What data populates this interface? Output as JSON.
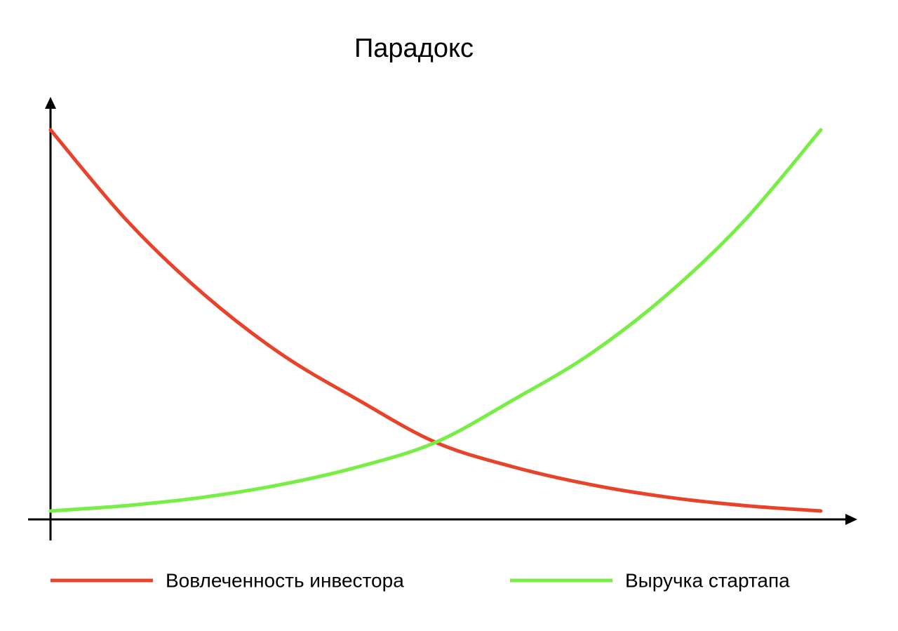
{
  "chart_data": {
    "type": "line",
    "title": "Парадокс",
    "x": [
      0,
      1,
      2,
      3,
      4,
      5,
      6,
      7,
      8,
      9,
      10
    ],
    "xlim": [
      0,
      10
    ],
    "ylim": [
      0,
      100
    ],
    "grid": false,
    "legend": "bottom",
    "series": [
      {
        "name": "Вовлеченность инвестора",
        "color": "#e8432a",
        "values": [
          92.5,
          70.8,
          53.3,
          39.2,
          28.3,
          18.3,
          12.5,
          8.3,
          5.3,
          3.3,
          2.0
        ]
      },
      {
        "name": "Выручка стартапа",
        "color": "#77ee44",
        "values": [
          2.0,
          3.3,
          5.3,
          8.3,
          12.5,
          18.3,
          28.3,
          39.2,
          53.3,
          70.8,
          92.5
        ]
      }
    ]
  }
}
